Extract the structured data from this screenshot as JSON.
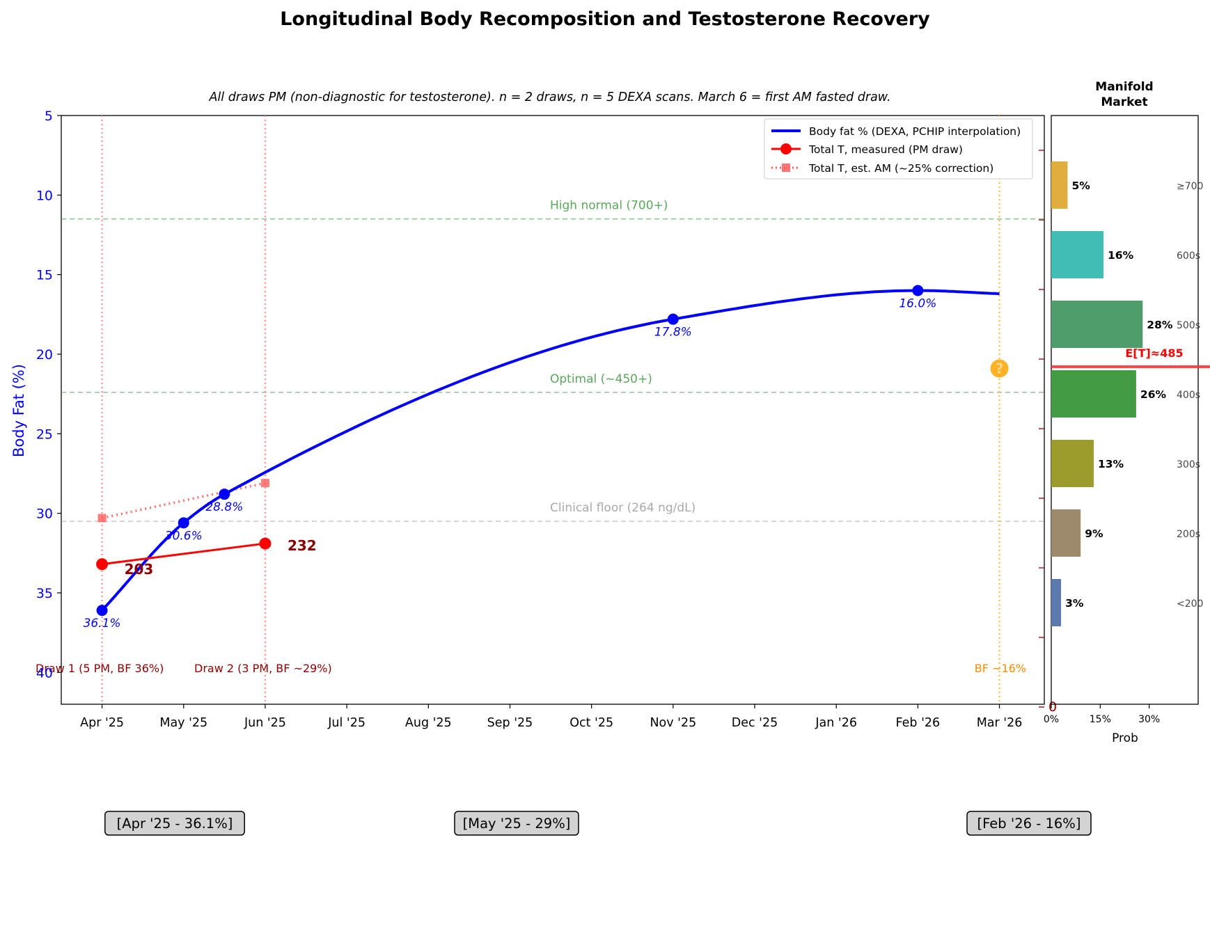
{
  "chart_data": {
    "type": "line",
    "title": "Longitudinal Body Recomposition and Testosterone Recovery",
    "subtitle": "All draws PM (non-diagnostic for testosterone). n = 2 draws, n = 5 DEXA scans. March 6 = first AM fasted draw.",
    "ylabel": "Body Fat (%)",
    "ylim": [
      42,
      5
    ],
    "yticks": [
      5,
      10,
      15,
      20,
      25,
      30,
      35,
      40
    ],
    "xticks": [
      "Apr '25",
      "May '25",
      "Jun '25",
      "Jul '25",
      "Aug '25",
      "Sep '25",
      "Oct '25",
      "Nov '25",
      "Dec '25",
      "Jan '26",
      "Feb '26",
      "Mar '26"
    ],
    "xrange": [
      -0.5,
      11.55
    ],
    "legend": [
      "Body fat % (DEXA, PCHIP interpolation)",
      "Total T, measured (PM draw)",
      "Total T, est. AM (~25% correction)"
    ],
    "series": [
      {
        "name": "Body fat % (DEXA, PCHIP interpolation)",
        "color": "#0000ff",
        "points": [
          {
            "x": 0,
            "y": 36.1,
            "label": "36.1%"
          },
          {
            "x": 1,
            "y": 30.6,
            "label": "30.6%"
          },
          {
            "x": 1.5,
            "y": 28.8,
            "label": "28.8%"
          },
          {
            "x": 7,
            "y": 17.8,
            "label": "17.8%"
          },
          {
            "x": 10,
            "y": 16.0,
            "label": "16.0%"
          }
        ],
        "curve_end": {
          "x": 11,
          "y": 16.2
        }
      },
      {
        "name": "Total T, measured (PM draw)",
        "color": "#ff0000",
        "points": [
          {
            "x": 0,
            "y": 33.2,
            "label": "203"
          },
          {
            "x": 2,
            "y": 31.9,
            "label": "232"
          }
        ]
      },
      {
        "name": "Total T, est. AM (~25% correction)",
        "color": "#ff5555",
        "points": [
          {
            "x": 0,
            "y": 30.3
          },
          {
            "x": 2,
            "y": 28.1
          }
        ]
      }
    ],
    "reference_lines": [
      {
        "label": "High normal (700+)",
        "y": 11.5,
        "color": "#5aa85a"
      },
      {
        "label": "Optimal (~450+)",
        "y": 22.4,
        "color": "#5aa85a"
      },
      {
        "label": "Clinical floor (264 ng/dL)",
        "y": 30.5,
        "color": "#aaaaaa"
      }
    ],
    "vertical_markers": [
      {
        "x": 0,
        "label": "Draw 1 (5 PM, BF 36%)",
        "color": "#ff8888"
      },
      {
        "x": 2,
        "label": "Draw 2 (3 PM, BF ~29%)",
        "color": "#ff8888"
      },
      {
        "x": 11,
        "label": "BF ~16%",
        "color": "#ffb733"
      }
    ],
    "future_marker": {
      "x": 11,
      "y": 20.9,
      "symbol": "?",
      "color": "#ffa500"
    },
    "bottom_annotations": [
      "[Apr '25 - 36.1%]",
      "[May '25 - 29%]",
      "[Feb '26 - 16%]"
    ],
    "right_axis_zero": "0",
    "market": {
      "title_line1": "Manifold",
      "title_line2": "Market",
      "xlabel": "Prob",
      "xticks": [
        "0%",
        "15%",
        "30%"
      ],
      "xlim": [
        0,
        45
      ],
      "expected_label": "E[T]≈485",
      "bars": [
        {
          "bucket": "≥700",
          "prob": 5,
          "label": "5%",
          "color": "#e0ad3f"
        },
        {
          "bucket": "600s",
          "prob": 16,
          "label": "16%",
          "color": "#42bdb5"
        },
        {
          "bucket": "500s",
          "prob": 28,
          "label": "28%",
          "color": "#4f9d6b"
        },
        {
          "bucket": "400s",
          "prob": 26,
          "label": "26%",
          "color": "#439b44"
        },
        {
          "bucket": "300s",
          "prob": 13,
          "label": "13%",
          "color": "#9c9c2c"
        },
        {
          "bucket": "200s",
          "prob": 9,
          "label": "9%",
          "color": "#9d8a6d"
        },
        {
          "bucket": "<200",
          "prob": 3,
          "label": "3%",
          "color": "#5c7aad"
        }
      ]
    }
  }
}
